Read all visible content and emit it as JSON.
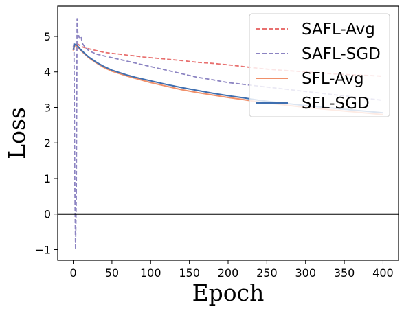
{
  "chart_data": {
    "type": "line",
    "xlabel": "Epoch",
    "ylabel": "Loss",
    "xlim": [
      -20,
      420
    ],
    "ylim": [
      -1.3,
      5.85
    ],
    "xticks": [
      0,
      50,
      100,
      150,
      200,
      250,
      300,
      350,
      400
    ],
    "yticks": [
      -1,
      0,
      1,
      2,
      3,
      4,
      5
    ],
    "xtick_labels": [
      "0",
      "50",
      "100",
      "150",
      "200",
      "250",
      "300",
      "350",
      "400"
    ],
    "ytick_labels": [
      "−1",
      "0",
      "1",
      "2",
      "3",
      "4",
      "5"
    ],
    "hline": 0,
    "grid": false,
    "legend_position": "top-right",
    "series": [
      {
        "name": "SAFL-Avg",
        "style": "dashed",
        "color": "#e8706f",
        "x": [
          0,
          2,
          5,
          10,
          15,
          20,
          30,
          40,
          50,
          60,
          70,
          80,
          90,
          100,
          120,
          140,
          160,
          180,
          200,
          220,
          240,
          260,
          280,
          300,
          320,
          340,
          360,
          380,
          400
        ],
        "y": [
          4.65,
          4.75,
          4.8,
          4.72,
          4.68,
          4.65,
          4.6,
          4.55,
          4.52,
          4.5,
          4.47,
          4.45,
          4.42,
          4.4,
          4.36,
          4.32,
          4.27,
          4.24,
          4.2,
          4.15,
          4.1,
          4.06,
          4.03,
          4.0,
          3.97,
          3.94,
          3.92,
          3.9,
          3.88
        ]
      },
      {
        "name": "SAFL-SGD",
        "style": "dashed",
        "color": "#8c84c2",
        "x": [
          0,
          1,
          2,
          3,
          4,
          5,
          6,
          8,
          10,
          12,
          15,
          20,
          30,
          40,
          50,
          60,
          70,
          80,
          90,
          100,
          120,
          140,
          160,
          180,
          200,
          220,
          240,
          260,
          280,
          300,
          320,
          340,
          360,
          380,
          400
        ],
        "y": [
          4.7,
          4.8,
          1.0,
          -1.0,
          0.5,
          5.5,
          5.1,
          4.95,
          5.0,
          4.8,
          4.7,
          4.6,
          4.5,
          4.45,
          4.4,
          4.35,
          4.3,
          4.25,
          4.2,
          4.15,
          4.05,
          3.95,
          3.85,
          3.78,
          3.7,
          3.65,
          3.6,
          3.55,
          3.5,
          3.45,
          3.4,
          3.35,
          3.3,
          3.25,
          3.2
        ]
      },
      {
        "name": "SFL-Avg",
        "style": "solid",
        "color": "#f0906a",
        "x": [
          0,
          2,
          5,
          10,
          15,
          20,
          30,
          40,
          50,
          60,
          70,
          80,
          90,
          100,
          120,
          140,
          160,
          180,
          200,
          220,
          240,
          260,
          280,
          300,
          320,
          340,
          360,
          380,
          400
        ],
        "y": [
          4.6,
          4.75,
          4.72,
          4.6,
          4.5,
          4.4,
          4.25,
          4.12,
          4.02,
          3.95,
          3.88,
          3.82,
          3.76,
          3.7,
          3.6,
          3.5,
          3.42,
          3.35,
          3.28,
          3.22,
          3.15,
          3.1,
          3.05,
          3.0,
          2.96,
          2.92,
          2.88,
          2.84,
          2.8
        ]
      },
      {
        "name": "SFL-SGD",
        "style": "solid",
        "color": "#3f6fb0",
        "x": [
          0,
          2,
          5,
          10,
          15,
          20,
          30,
          40,
          50,
          60,
          70,
          80,
          90,
          100,
          120,
          140,
          160,
          180,
          200,
          220,
          240,
          260,
          280,
          300,
          320,
          340,
          360,
          380,
          400
        ],
        "y": [
          4.62,
          4.78,
          4.75,
          4.62,
          4.52,
          4.42,
          4.27,
          4.15,
          4.05,
          3.98,
          3.91,
          3.85,
          3.8,
          3.75,
          3.65,
          3.56,
          3.48,
          3.4,
          3.33,
          3.27,
          3.2,
          3.15,
          3.1,
          3.05,
          3.01,
          2.97,
          2.93,
          2.89,
          2.85
        ]
      }
    ]
  }
}
